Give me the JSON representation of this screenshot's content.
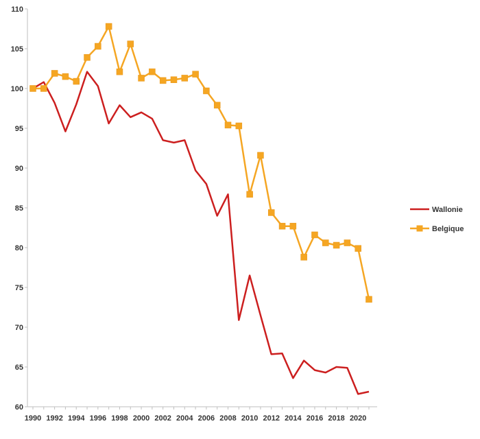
{
  "chart_data": {
    "type": "line",
    "x": [
      1990,
      1991,
      1992,
      1993,
      1994,
      1995,
      1996,
      1997,
      1998,
      1999,
      2000,
      2001,
      2002,
      2003,
      2004,
      2005,
      2006,
      2007,
      2008,
      2009,
      2010,
      2011,
      2012,
      2013,
      2014,
      2015,
      2016,
      2017,
      2018,
      2019,
      2020,
      2021
    ],
    "xticks": [
      "1990",
      "1992",
      "1994",
      "1996",
      "1998",
      "2000",
      "2002",
      "2004",
      "2006",
      "2008",
      "2010",
      "2012",
      "2014",
      "2016",
      "2018",
      "2020"
    ],
    "yticks": [
      "60",
      "65",
      "70",
      "75",
      "80",
      "85",
      "90",
      "95",
      "100",
      "105",
      "110"
    ],
    "ylim": [
      60,
      110
    ],
    "xlim": [
      1990,
      2021
    ],
    "grid": false,
    "legend_position": "right",
    "series": [
      {
        "name": "Wallonie",
        "color": "#cc1f1f",
        "marker": "none",
        "values": [
          100.0,
          100.8,
          98.2,
          94.6,
          98.0,
          102.1,
          100.3,
          95.6,
          97.9,
          96.4,
          97.0,
          96.2,
          93.5,
          93.2,
          93.5,
          89.7,
          88.0,
          84.0,
          86.7,
          70.9,
          76.5,
          71.5,
          66.6,
          66.7,
          63.6,
          65.8,
          64.6,
          64.3,
          65.0,
          64.9,
          61.6,
          61.9
        ]
      },
      {
        "name": "Belgique",
        "color": "#f5a623",
        "marker": "square",
        "values": [
          100.0,
          100.0,
          101.9,
          101.5,
          100.9,
          103.9,
          105.3,
          107.8,
          102.1,
          105.6,
          101.3,
          102.1,
          101.0,
          101.1,
          101.3,
          101.8,
          99.7,
          97.9,
          95.4,
          95.3,
          86.7,
          91.6,
          84.4,
          82.7,
          82.7,
          78.8,
          81.6,
          80.6,
          80.3,
          80.6,
          79.9,
          73.5
        ]
      }
    ]
  }
}
